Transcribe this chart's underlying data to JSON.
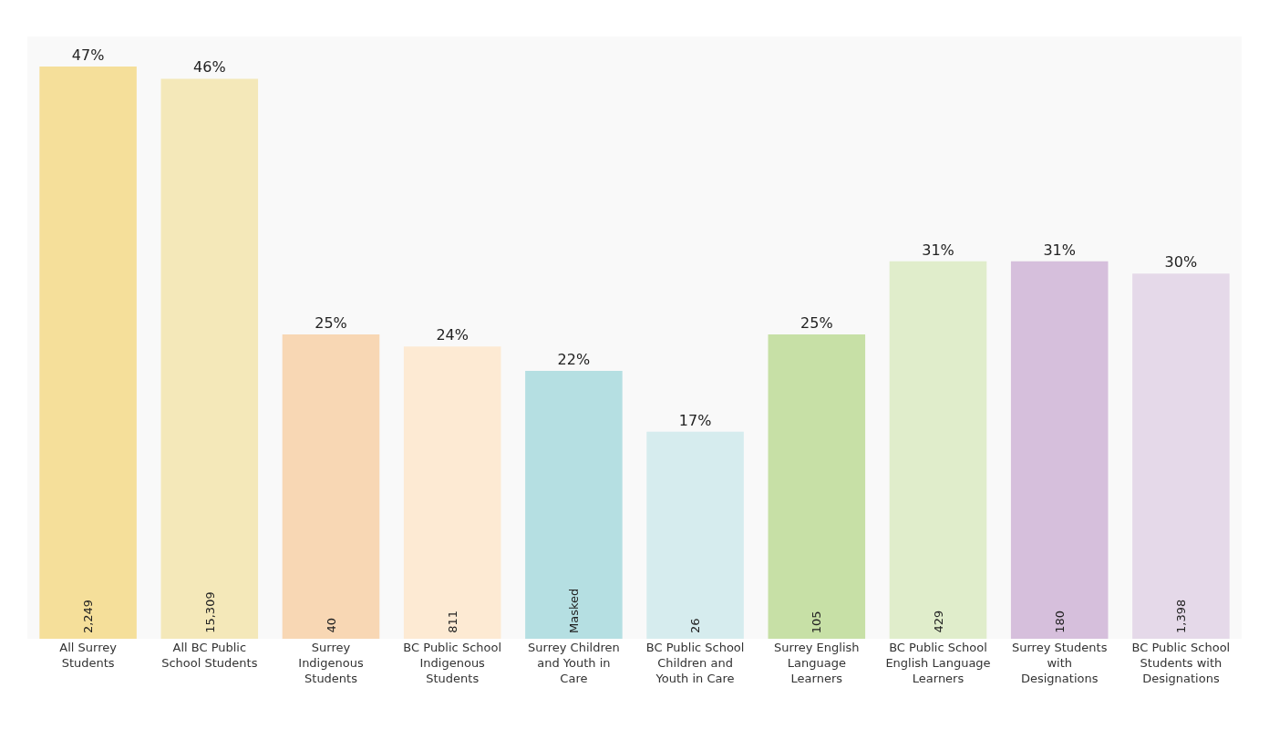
{
  "chart_data": {
    "type": "bar",
    "categories": [
      "All Surrey Students",
      "All BC Public School Students",
      "Surrey Indigenous Students",
      "BC Public School Indigenous Students",
      "Surrey Children and Youth in Care",
      "BC Public School Children and Youth in Care",
      "Surrey English Language Learners",
      "BC Public School English Language Learners",
      "Surrey Students with Designations",
      "BC Public School Students with Designations"
    ],
    "values": [
      47,
      46,
      25,
      24,
      22,
      17,
      25,
      31,
      31,
      30
    ],
    "value_labels": [
      "47%",
      "46%",
      "25%",
      "24%",
      "22%",
      "17%",
      "25%",
      "31%",
      "31%",
      "30%"
    ],
    "colors": [
      "#f5df9a",
      "#f4e8b9",
      "#f8d7b4",
      "#fdead3",
      "#b5dfe2",
      "#d6ecee",
      "#c7e0a6",
      "#e0edcb",
      "#d6bfdc",
      "#e5d9e9"
    ],
    "annotations": [
      "2,249",
      "15,309",
      "40",
      "811",
      "Masked",
      "26",
      "105",
      "429",
      "180",
      "1,398"
    ]
  }
}
